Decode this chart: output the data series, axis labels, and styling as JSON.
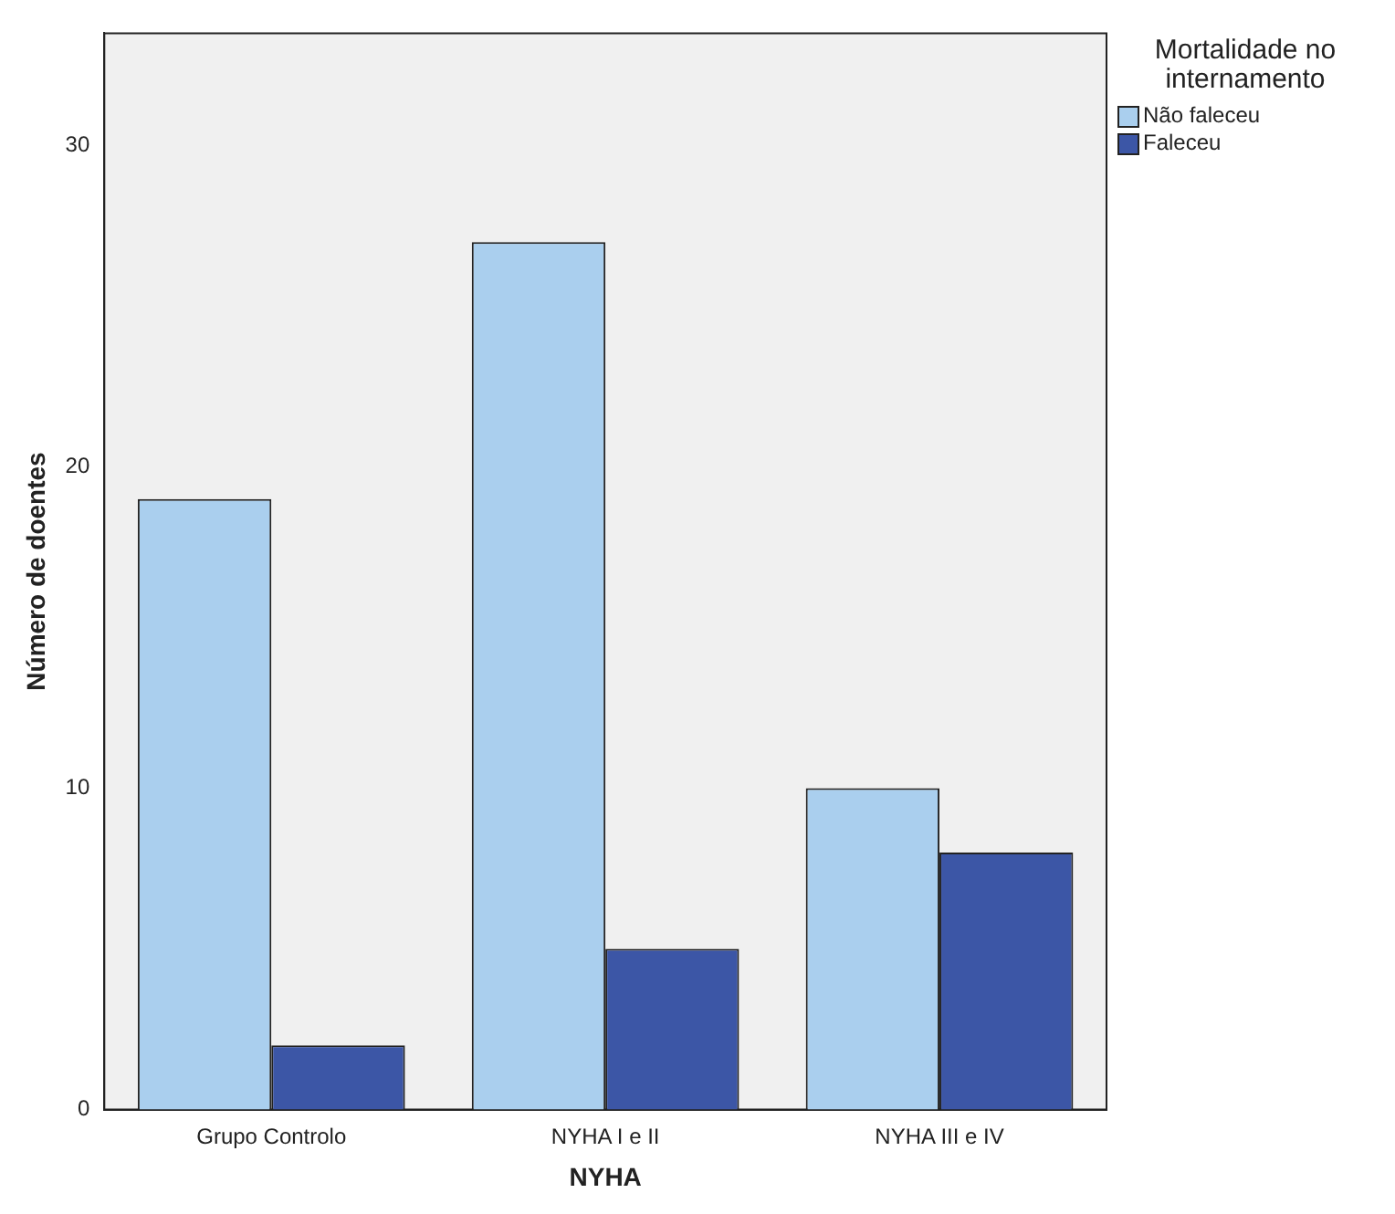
{
  "chart_data": {
    "type": "bar",
    "xlabel": "NYHA",
    "ylabel": "Número de doentes",
    "legend_title": "Mortalidade no internamento",
    "categories": [
      "Grupo Controlo",
      "NYHA I e II",
      "NYHA III e IV"
    ],
    "series": [
      {
        "name": "Não faleceu",
        "color": "#aacfee",
        "values": [
          19,
          27,
          10
        ]
      },
      {
        "name": "Faleceu",
        "color": "#3c56a6",
        "values": [
          2,
          5,
          8
        ]
      }
    ],
    "ylim": [
      0,
      33.5
    ],
    "yticks": [
      0,
      10,
      20,
      30
    ],
    "grid": false,
    "legend": "top right"
  }
}
